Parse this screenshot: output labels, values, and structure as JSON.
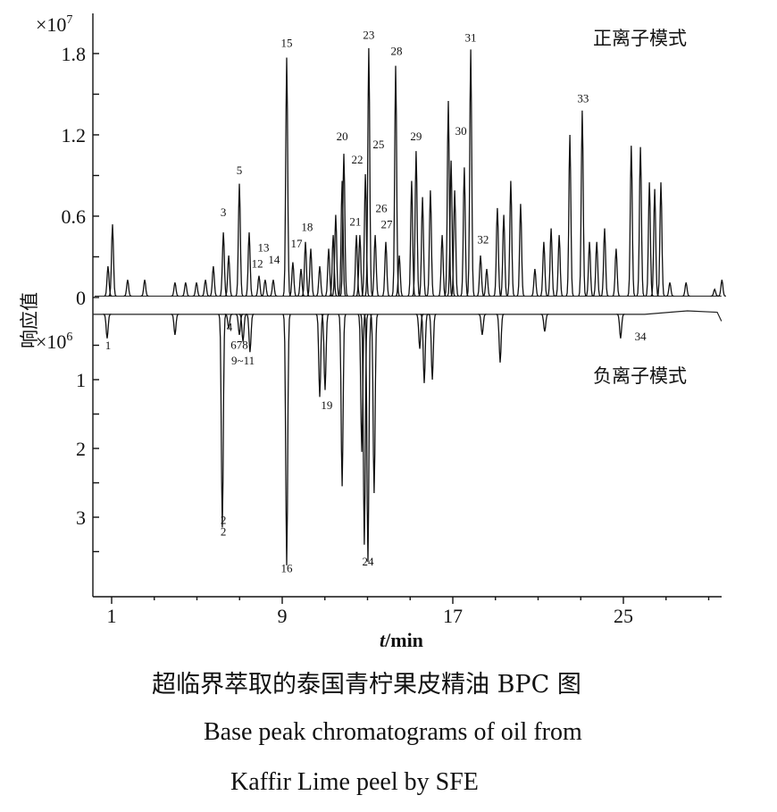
{
  "chart_data": {
    "type": "line",
    "title": "超临界萃取的泰国青柠果皮精油 BPC 图",
    "caption_en_line1": "Base peak chromatograms of oil from",
    "caption_en_line2": "Kaffir Lime peel by SFE",
    "xlabel_italic": "t",
    "xlabel_unit": "/min",
    "ylabel": "响应值",
    "xlim": [
      0.1,
      29.6
    ],
    "xticks": [
      "1",
      "9",
      "17",
      "25"
    ],
    "xtick_values": [
      1,
      9,
      17,
      25
    ],
    "series": [
      {
        "name": "正离子模式",
        "multiplier_label": "×10",
        "multiplier_exp": "7",
        "ylim": [
          0,
          1.95
        ],
        "yticks": [
          "0",
          "0.6",
          "1.2",
          "1.8"
        ],
        "ytick_values": [
          0,
          0.6,
          1.2,
          1.8
        ],
        "peaks_t": [
          0.83,
          1.04,
          1.75,
          2.55,
          3.97,
          4.47,
          4.98,
          5.4,
          5.77,
          6.24,
          6.49,
          6.99,
          7.45,
          7.91,
          8.2,
          8.58,
          9.21,
          9.5,
          9.88,
          10.09,
          10.34,
          10.76,
          11.18,
          11.39,
          11.51,
          11.81,
          11.89,
          12.48,
          12.64,
          12.9,
          13.06,
          13.36,
          13.86,
          14.32,
          14.49,
          15.07,
          15.28,
          15.58,
          15.95,
          16.5,
          16.79,
          16.92,
          17.09,
          17.54,
          17.84,
          18.3,
          18.59,
          19.09,
          19.39,
          19.72,
          20.18,
          20.85,
          21.27,
          21.61,
          21.99,
          22.49,
          23.07,
          23.41,
          23.75,
          24.12,
          24.66,
          25.37,
          25.8,
          26.22,
          26.47,
          26.76,
          27.18,
          27.94,
          29.28,
          29.62
        ],
        "peaks_y": [
          0.22,
          0.53,
          0.12,
          0.12,
          0.1,
          0.1,
          0.1,
          0.12,
          0.22,
          0.47,
          0.3,
          0.83,
          0.47,
          0.15,
          0.12,
          0.12,
          1.76,
          0.25,
          0.2,
          0.4,
          0.35,
          0.22,
          0.35,
          0.45,
          0.6,
          0.85,
          1.05,
          0.45,
          0.45,
          0.9,
          1.83,
          0.45,
          0.4,
          1.7,
          0.3,
          0.85,
          1.07,
          0.73,
          0.78,
          0.45,
          1.44,
          1.0,
          0.78,
          0.95,
          1.82,
          0.3,
          0.2,
          0.65,
          0.6,
          0.85,
          0.68,
          0.2,
          0.4,
          0.5,
          0.45,
          1.19,
          1.37,
          0.4,
          0.4,
          0.5,
          0.35,
          1.11,
          1.1,
          0.84,
          0.79,
          0.84,
          0.1,
          0.1,
          0.05,
          0.12
        ],
        "labels": [
          {
            "text": "3",
            "t": 6.24,
            "y": 0.6
          },
          {
            "text": "5",
            "t": 6.99,
            "y": 0.91
          },
          {
            "text": "12",
            "t": 7.83,
            "y": 0.22
          },
          {
            "text": "13",
            "t": 8.12,
            "y": 0.34
          },
          {
            "text": "14",
            "t": 8.62,
            "y": 0.25
          },
          {
            "text": "15",
            "t": 9.21,
            "y": 1.85
          },
          {
            "text": "17",
            "t": 9.67,
            "y": 0.37
          },
          {
            "text": "18",
            "t": 10.17,
            "y": 0.49
          },
          {
            "text": "20",
            "t": 11.81,
            "y": 1.16
          },
          {
            "text": "21",
            "t": 12.43,
            "y": 0.53
          },
          {
            "text": "22",
            "t": 12.52,
            "y": 0.99
          },
          {
            "text": "23",
            "t": 13.06,
            "y": 1.91
          },
          {
            "text": "25",
            "t": 13.52,
            "y": 1.1
          },
          {
            "text": "26",
            "t": 13.65,
            "y": 0.63
          },
          {
            "text": "27",
            "t": 13.9,
            "y": 0.51
          },
          {
            "text": "28",
            "t": 14.36,
            "y": 1.79
          },
          {
            "text": "29",
            "t": 15.28,
            "y": 1.16
          },
          {
            "text": "30",
            "t": 17.38,
            "y": 1.2
          },
          {
            "text": "31",
            "t": 17.84,
            "y": 1.89
          },
          {
            "text": "32",
            "t": 18.42,
            "y": 0.4
          },
          {
            "text": "33",
            "t": 23.11,
            "y": 1.44
          }
        ]
      },
      {
        "name": "负离子模式",
        "multiplier_label": "×10",
        "multiplier_exp": "6",
        "ylim": [
          0,
          4.2
        ],
        "direction": "downward",
        "yticks": [
          "1",
          "2",
          "3"
        ],
        "ytick_values": [
          1,
          2,
          3
        ],
        "baseline": 0.05,
        "peaks_t": [
          0.79,
          3.97,
          6.19,
          6.49,
          6.99,
          7.16,
          7.49,
          9.21,
          10.76,
          11.01,
          11.81,
          12.73,
          12.85,
          13.02,
          13.31,
          15.45,
          15.66,
          16.04,
          18.38,
          19.22,
          21.31,
          24.87
        ],
        "peaks_y": [
          0.35,
          0.3,
          3.1,
          0.2,
          0.3,
          0.4,
          0.55,
          3.65,
          1.2,
          1.1,
          2.5,
          2.0,
          3.35,
          3.6,
          2.6,
          0.5,
          1.0,
          0.95,
          0.3,
          0.7,
          0.25,
          0.35
        ],
        "labels": [
          {
            "text": "1",
            "t": 0.83,
            "y": 0.56
          },
          {
            "text": "4",
            "t": 6.53,
            "y": 0.29
          },
          {
            "text": "678",
            "t": 6.99,
            "y": 0.55
          },
          {
            "text": "9~11",
            "t": 7.16,
            "y": 0.78
          },
          {
            "text": "2 2",
            "t": 6.24,
            "y": 3.1
          },
          {
            "text": "16",
            "t": 9.21,
            "y": 3.8
          },
          {
            "text": "19",
            "t": 11.09,
            "y": 1.43
          },
          {
            "text": "24",
            "t": 13.02,
            "y": 3.7
          },
          {
            "text": "34",
            "t": 25.8,
            "y": 0.43
          }
        ]
      }
    ]
  }
}
